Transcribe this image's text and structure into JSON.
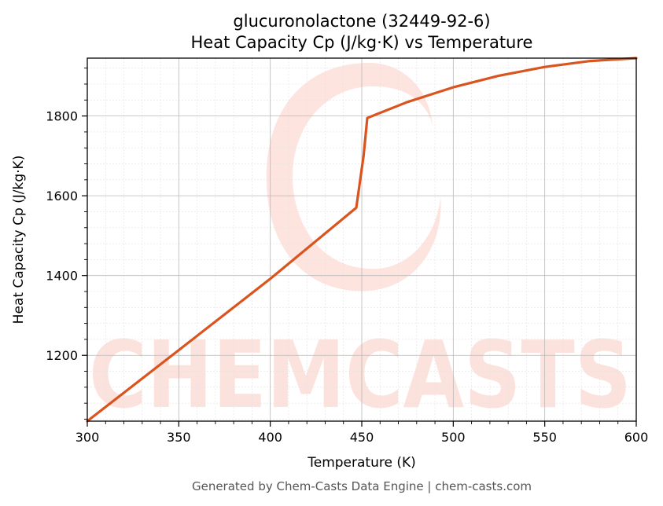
{
  "chart_data": {
    "type": "line",
    "title": "glucuronolactone (32449-92-6)",
    "subtitle": "Heat Capacity Cp (J/kg·K) vs Temperature",
    "xlabel": "Temperature (K)",
    "ylabel": "Heat Capacity Cp (J/kg·K)",
    "xlim": [
      300,
      600
    ],
    "ylim": [
      1035,
      1945
    ],
    "xticks": [
      300,
      350,
      400,
      450,
      500,
      550,
      600
    ],
    "yticks": [
      1200,
      1400,
      1600,
      1800
    ],
    "grid": true,
    "legend": "none",
    "series": [
      {
        "color": "#d9541e",
        "x": [
          300,
          350,
          400,
          447,
          451,
          453,
          460,
          475,
          500,
          525,
          550,
          575,
          600
        ],
        "y": [
          1035,
          1213,
          1392,
          1570,
          1700,
          1795,
          1808,
          1835,
          1872,
          1901,
          1923,
          1938,
          1945
        ]
      }
    ]
  },
  "watermark": {
    "text": "CHEMCASTS",
    "color": "#fcd9d2"
  },
  "footer": "Generated by Chem-Casts Data Engine | chem-casts.com"
}
